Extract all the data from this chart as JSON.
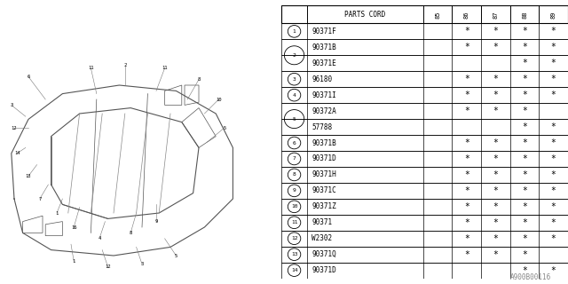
{
  "watermark": "A900B00116",
  "years": [
    "85",
    "86",
    "87",
    "88",
    "89"
  ],
  "rows": [
    {
      "num": "1",
      "part": "90371F",
      "marks": [
        false,
        true,
        true,
        true,
        true
      ],
      "show_num": true,
      "span_start": true,
      "span_end": true
    },
    {
      "num": "2",
      "part": "90371B",
      "marks": [
        false,
        true,
        true,
        true,
        true
      ],
      "show_num": true,
      "span_start": true,
      "span_end": false
    },
    {
      "num": "",
      "part": "90371E",
      "marks": [
        false,
        false,
        false,
        true,
        true
      ],
      "show_num": false,
      "span_start": false,
      "span_end": true
    },
    {
      "num": "3",
      "part": "96180",
      "marks": [
        false,
        true,
        true,
        true,
        true
      ],
      "show_num": true,
      "span_start": true,
      "span_end": true
    },
    {
      "num": "4",
      "part": "90371I",
      "marks": [
        false,
        true,
        true,
        true,
        true
      ],
      "show_num": true,
      "span_start": true,
      "span_end": true
    },
    {
      "num": "5",
      "part": "90372A",
      "marks": [
        false,
        true,
        true,
        true,
        false
      ],
      "show_num": true,
      "span_start": true,
      "span_end": false
    },
    {
      "num": "",
      "part": "57788",
      "marks": [
        false,
        false,
        false,
        true,
        true
      ],
      "show_num": false,
      "span_start": false,
      "span_end": true
    },
    {
      "num": "6",
      "part": "90371B",
      "marks": [
        false,
        true,
        true,
        true,
        true
      ],
      "show_num": true,
      "span_start": true,
      "span_end": true
    },
    {
      "num": "7",
      "part": "90371D",
      "marks": [
        false,
        true,
        true,
        true,
        true
      ],
      "show_num": true,
      "span_start": true,
      "span_end": true
    },
    {
      "num": "8",
      "part": "90371H",
      "marks": [
        false,
        true,
        true,
        true,
        true
      ],
      "show_num": true,
      "span_start": true,
      "span_end": true
    },
    {
      "num": "9",
      "part": "90371C",
      "marks": [
        false,
        true,
        true,
        true,
        true
      ],
      "show_num": true,
      "span_start": true,
      "span_end": true
    },
    {
      "num": "10",
      "part": "90371Z",
      "marks": [
        false,
        true,
        true,
        true,
        true
      ],
      "show_num": true,
      "span_start": true,
      "span_end": true
    },
    {
      "num": "11",
      "part": "90371",
      "marks": [
        false,
        true,
        true,
        true,
        true
      ],
      "show_num": true,
      "span_start": true,
      "span_end": true
    },
    {
      "num": "12",
      "part": "W2302",
      "marks": [
        false,
        true,
        true,
        true,
        true
      ],
      "show_num": true,
      "span_start": true,
      "span_end": true
    },
    {
      "num": "13",
      "part": "90371Q",
      "marks": [
        false,
        true,
        true,
        true,
        false
      ],
      "show_num": true,
      "span_start": true,
      "span_end": true
    },
    {
      "num": "14",
      "part": "90371D",
      "marks": [
        false,
        false,
        false,
        true,
        true
      ],
      "show_num": true,
      "span_start": true,
      "span_end": true
    }
  ],
  "bg_color": "#ffffff",
  "text_color": "#000000",
  "line_color": "#000000"
}
